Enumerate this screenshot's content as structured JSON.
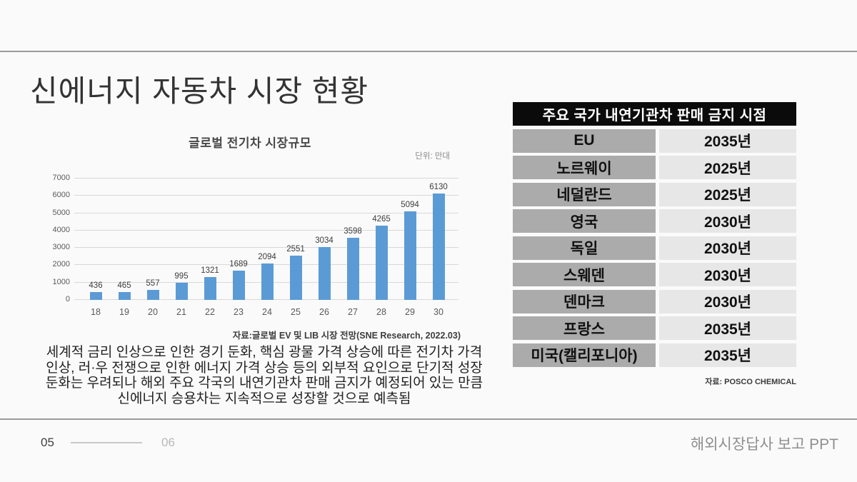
{
  "slide_title": "신에너지 자동차 시장 현황",
  "chart": {
    "title": "글로벌 전기차 시장규모",
    "unit_label": "단위: 만대",
    "source": "자료:글로벌 EV 및 LIB 시장 전망(SNE Research, 2022.03)"
  },
  "chart_data": {
    "type": "bar",
    "title": "글로벌 전기차 시장규모",
    "unit": "만대",
    "categories": [
      "18",
      "19",
      "20",
      "21",
      "22",
      "23",
      "24",
      "25",
      "26",
      "27",
      "28",
      "29",
      "30"
    ],
    "values": [
      436,
      465,
      557,
      995,
      1321,
      1689,
      2094,
      2551,
      3034,
      3598,
      4265,
      5094,
      6130
    ],
    "xlabel": "",
    "ylabel": "",
    "ylim": [
      0,
      7000
    ],
    "ytick_step": 1000,
    "grid": true,
    "data_labels": true,
    "legend": "none",
    "bar_color": "#5b9bd5"
  },
  "commentary": "세계적 금리 인상으로 인한 경기 둔화, 핵심 광물 가격 상승에 따른 전기차 가격\n인상, 러·우 전쟁으로 인한 에너지 가격 상승 등의 외부적 요인으로 단기적 성장\n둔화는 우려되나 해외 주요 각국의 내연기관차 판매 금지가 예정되어 있는 만큼\n신에너지 승용차는 지속적으로 성장할 것으로 예측됨",
  "ban_table": {
    "header": "주요 국가 내연기관차 판매 금지 시점",
    "rows": [
      {
        "country": "EU",
        "year": "2035년"
      },
      {
        "country": "노르웨이",
        "year": "2025년"
      },
      {
        "country": "네덜란드",
        "year": "2025년"
      },
      {
        "country": "영국",
        "year": "2030년"
      },
      {
        "country": "독일",
        "year": "2030년"
      },
      {
        "country": "스웨덴",
        "year": "2030년"
      },
      {
        "country": "덴마크",
        "year": "2030년"
      },
      {
        "country": "프랑스",
        "year": "2035년"
      },
      {
        "country": "미국(캘리포니아)",
        "year": "2035년"
      }
    ],
    "source": "자료: POSCO CHEMICAL"
  },
  "footer": {
    "page_current": "05",
    "page_next": "06",
    "doc_title": "해외시장답사 보고 PPT"
  },
  "colors": {
    "background": "#fafafa",
    "bar": "#5b9bd5",
    "gridline": "#d8d8d8",
    "divider": "#9c9c9c",
    "table_header_bg": "#0b0b0b",
    "table_header_text": "#ffffff",
    "table_country_bg": "#ababab",
    "table_year_bg": "#e7e7e7"
  }
}
